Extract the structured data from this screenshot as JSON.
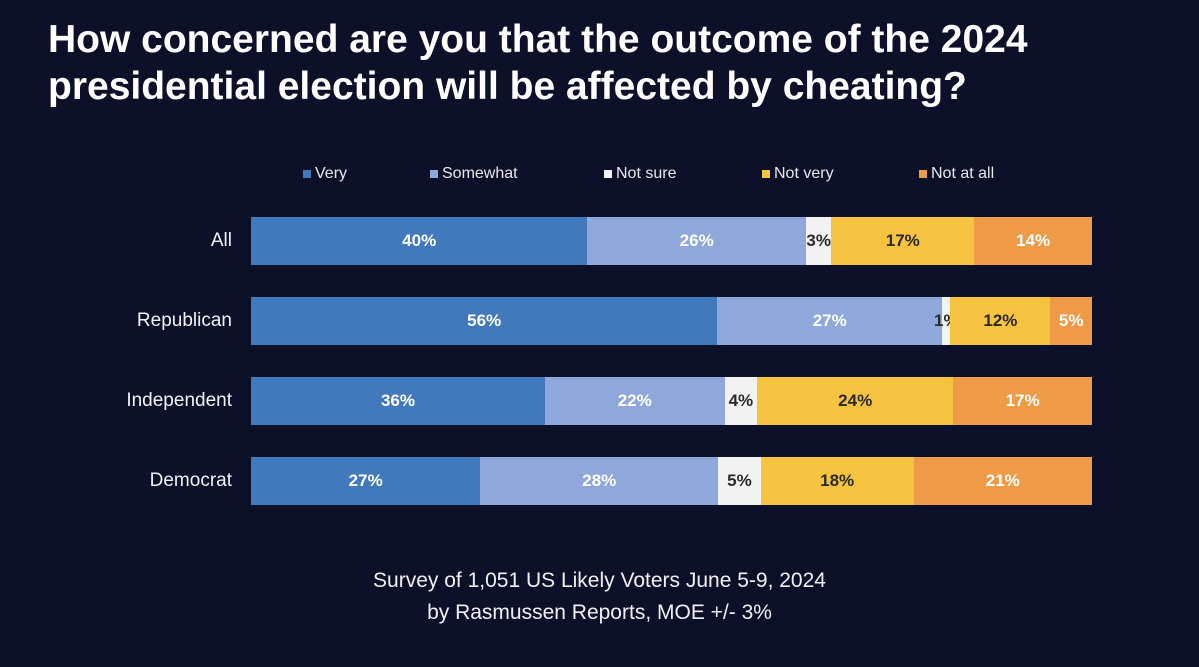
{
  "title_line1": "How concerned are you that the outcome of the 2024",
  "title_line2": "presidential election will be affected by cheating?",
  "chart_data": {
    "type": "bar",
    "orientation": "horizontal-stacked-100",
    "title": "How concerned are you that the outcome of the 2024 presidential election will be affected by cheating?",
    "categories": [
      "All",
      "Republican",
      "Independent",
      "Democrat"
    ],
    "series": [
      {
        "name": "Very",
        "color": "#4279bd",
        "values": [
          40,
          56,
          36,
          27
        ],
        "labels": [
          "40%",
          "56%",
          "36%",
          "27%"
        ]
      },
      {
        "name": "Somewhat",
        "color": "#8ea8dc",
        "values": [
          26,
          27,
          22,
          28
        ],
        "labels": [
          "26%",
          "27%",
          "22%",
          "28%"
        ]
      },
      {
        "name": "Not sure",
        "color": "#f2f2f2",
        "values": [
          3,
          1,
          4,
          5
        ],
        "labels": [
          "3%",
          "1%",
          "4%",
          "5%"
        ]
      },
      {
        "name": "Not very",
        "color": "#f5c33f",
        "values": [
          17,
          12,
          24,
          18
        ],
        "labels": [
          "17%",
          "12%",
          "24%",
          "18%"
        ]
      },
      {
        "name": "Not at all",
        "color": "#ee9a47",
        "values": [
          14,
          5,
          17,
          21
        ],
        "labels": [
          "14%",
          "5%",
          "17%",
          "21%"
        ]
      }
    ],
    "legend_position": "top",
    "xlim": [
      0,
      100
    ]
  },
  "footnote_line1": "Survey of 1,051 US Likely Voters June 5-9, 2024",
  "footnote_line2": "by Rasmussen Reports, MOE +/- 3%"
}
